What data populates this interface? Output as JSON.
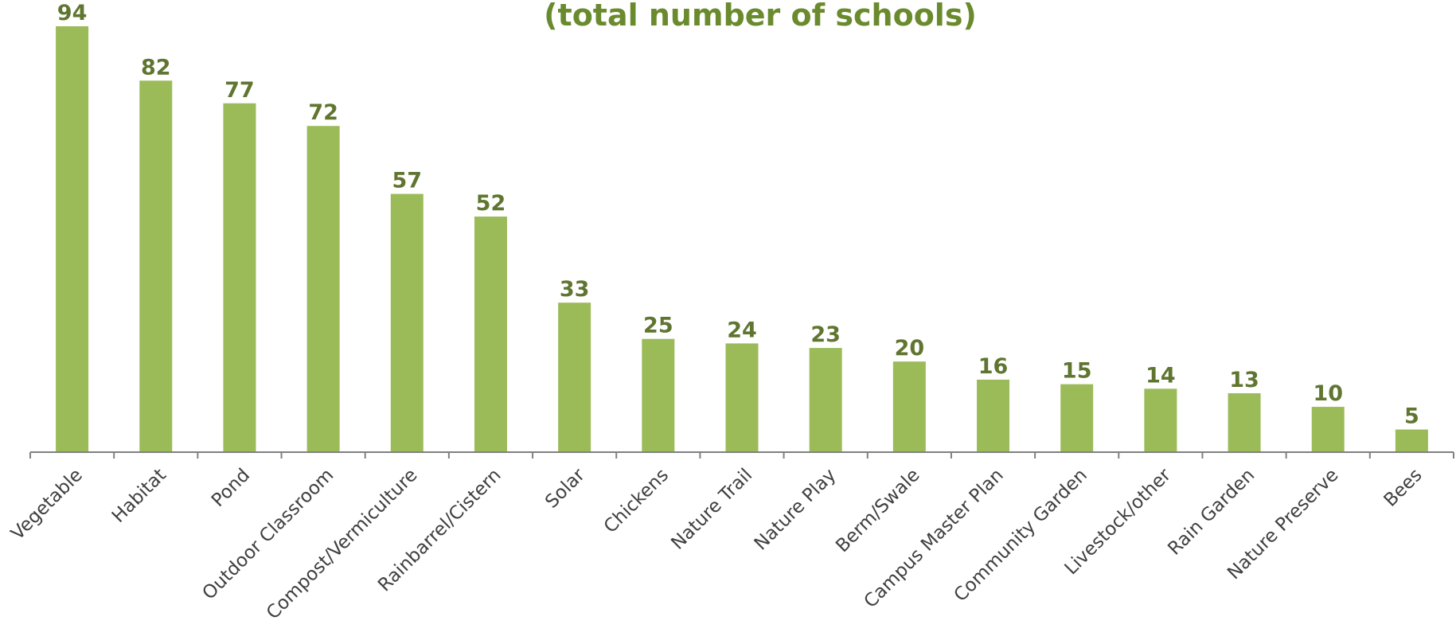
{
  "chart_data": {
    "type": "bar",
    "title": "(total number of schools)",
    "categories": [
      "Vegetable",
      "Habitat",
      "Pond",
      "Outdoor Classroom",
      "Compost/Vermiculture",
      "Rainbarrel/Cistern",
      "Solar",
      "Chickens",
      "Nature Trail",
      "Nature Play",
      "Berm/Swale",
      "Campus Master Plan",
      "Community Garden",
      "Livestock/other",
      "Rain Garden",
      "Nature Preserve",
      "Bees"
    ],
    "values": [
      94,
      82,
      77,
      72,
      57,
      52,
      33,
      25,
      24,
      23,
      20,
      16,
      15,
      14,
      13,
      10,
      5
    ],
    "data_labels": [
      "94",
      "82",
      "77",
      "72",
      "57",
      "52",
      "33",
      "25",
      "24",
      "23",
      "20",
      "16",
      "15",
      "14",
      "13",
      "10",
      "5"
    ],
    "ylim": [
      0,
      94
    ],
    "grid": false,
    "legend": "none",
    "colors": {
      "bar": "#9bbb59",
      "value_label": "#5f7530",
      "title": "#6a8a2e",
      "axis": "#808080",
      "category_label": "#404040"
    }
  }
}
